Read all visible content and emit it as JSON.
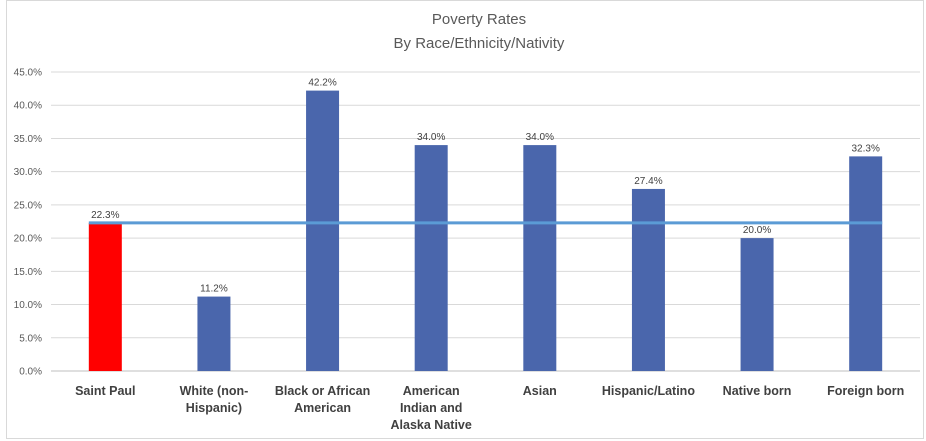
{
  "chart_data": {
    "type": "bar",
    "title": "Poverty Rates",
    "subtitle": "By Race/Ethnicity/Nativity",
    "categories": [
      [
        "Saint Paul"
      ],
      [
        "White (non-",
        "Hispanic)"
      ],
      [
        "Black or African",
        "American"
      ],
      [
        "American",
        "Indian and",
        "Alaska Native"
      ],
      [
        "Asian"
      ],
      [
        "Hispanic/Latino"
      ],
      [
        "Native born"
      ],
      [
        "Foreign born"
      ]
    ],
    "values": [
      22.3,
      11.2,
      42.2,
      34.0,
      34.0,
      27.4,
      20.0,
      32.3
    ],
    "value_labels": [
      "22.3%",
      "11.2%",
      "42.2%",
      "34.0%",
      "34.0%",
      "27.4%",
      "20.0%",
      "32.3%"
    ],
    "bar_colors": [
      "#ff0000",
      "#4a66ac",
      "#4a66ac",
      "#4a66ac",
      "#4a66ac",
      "#4a66ac",
      "#4a66ac",
      "#4a66ac"
    ],
    "reference_line": {
      "value": 22.3,
      "color": "#5b9bd5"
    },
    "ylim": [
      0,
      45
    ],
    "yticks": [
      0,
      5,
      10,
      15,
      20,
      25,
      30,
      35,
      40,
      45
    ],
    "ytick_labels": [
      "0.0%",
      "5.0%",
      "10.0%",
      "15.0%",
      "20.0%",
      "25.0%",
      "30.0%",
      "35.0%",
      "40.0%",
      "45.0%"
    ],
    "grid": true,
    "legend": "none",
    "xlabel": "",
    "ylabel": ""
  }
}
